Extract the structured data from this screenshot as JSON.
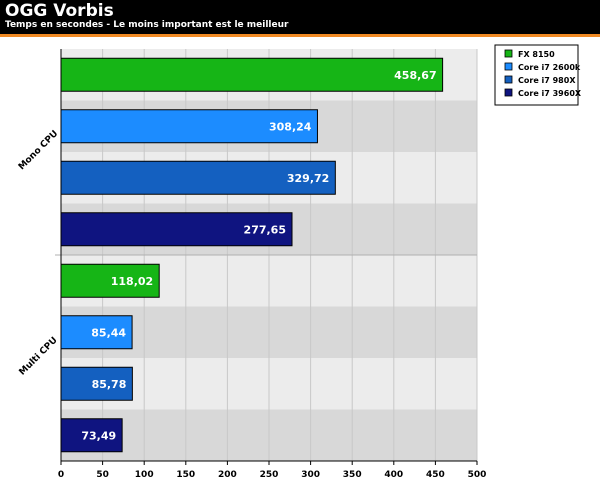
{
  "header": {
    "title": "OGG Vorbis",
    "subtitle": "Temps en secondes - Le moins important est le meilleur"
  },
  "colors": {
    "header_bg": "#000000",
    "accent": "#f08a24",
    "plot_bg": "#e6e6e6",
    "band_light": "#ececec",
    "band_dark": "#d8d8d8"
  },
  "chart_data": {
    "type": "bar",
    "orientation": "horizontal",
    "title": "OGG Vorbis",
    "subtitle": "Temps en secondes - Le moins important est le meilleur",
    "xlabel": "",
    "ylabel": "",
    "xlim": [
      0,
      500
    ],
    "xticks": [
      0,
      50,
      100,
      150,
      200,
      250,
      300,
      350,
      400,
      450,
      500
    ],
    "categories": [
      "Mono CPU",
      "Multi CPU"
    ],
    "legend_position": "top-right",
    "series": [
      {
        "name": "FX 8150",
        "color": "#16b516",
        "values": [
          458.67,
          118.02
        ],
        "labels": [
          "458,67",
          "118,02"
        ]
      },
      {
        "name": "Core i7 2600k",
        "color": "#1c8cff",
        "values": [
          308.24,
          85.44
        ],
        "labels": [
          "308,24",
          "85,44"
        ]
      },
      {
        "name": "Core i7 980X",
        "color": "#1460c0",
        "values": [
          329.72,
          85.78
        ],
        "labels": [
          "329,72",
          "85,78"
        ]
      },
      {
        "name": "Core i7 3960X",
        "color": "#0f1480",
        "values": [
          277.65,
          73.49
        ],
        "labels": [
          "277,65",
          "73,49"
        ]
      }
    ]
  }
}
